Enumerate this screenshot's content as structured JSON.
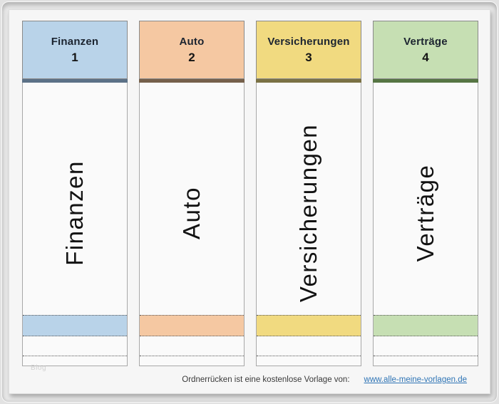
{
  "labels": [
    {
      "tab_name": "Finanzen",
      "tab_number": "1",
      "spine_text": "Finanzen",
      "color": "#b9d3e9",
      "dark_color": "#5c7187"
    },
    {
      "tab_name": "Auto",
      "tab_number": "2",
      "spine_text": "Auto",
      "color": "#f5c8a2",
      "dark_color": "#75604b"
    },
    {
      "tab_name": "Versicherungen",
      "tab_number": "3",
      "spine_text": "Versicherungen",
      "color": "#f1da80",
      "dark_color": "#7a7144"
    },
    {
      "tab_name": "Verträge",
      "tab_number": "4",
      "spine_text": "Verträge",
      "color": "#c6dfb3",
      "dark_color": "#567543"
    }
  ],
  "footer": {
    "caption": "Ordnerrücken ist eine kostenlose Vorlage von:",
    "link_text": "www.alle-meine-vorlagen.de",
    "link_color": "#2e74b5"
  },
  "watermark": "Blog",
  "colors": {
    "paper": "#f6f6f6",
    "window_bg": "#e9e9e9"
  }
}
